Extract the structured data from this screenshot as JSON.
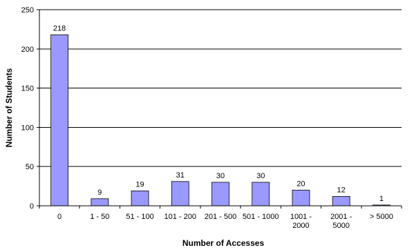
{
  "chart_data": {
    "type": "bar",
    "title": "",
    "xlabel": "Number of Accesses",
    "ylabel": "Number of Students",
    "categories": [
      [
        "0"
      ],
      [
        "1 - 50"
      ],
      [
        "51 - 100"
      ],
      [
        "101 - 200"
      ],
      [
        "201 - 500"
      ],
      [
        "501 - 1000"
      ],
      [
        "1001 -",
        "2000"
      ],
      [
        "2001 -",
        "5000"
      ],
      [
        "> 5000"
      ]
    ],
    "values": [
      218,
      9,
      19,
      31,
      30,
      30,
      20,
      12,
      1
    ],
    "ylim": [
      0,
      250
    ],
    "yticks": [
      0,
      50,
      100,
      150,
      200,
      250
    ],
    "grid": true,
    "legend": "none",
    "colors": {
      "bar_fill": "#9999ff",
      "bar_stroke": "#000000",
      "grid": "#000000",
      "axis": "#000000"
    }
  }
}
